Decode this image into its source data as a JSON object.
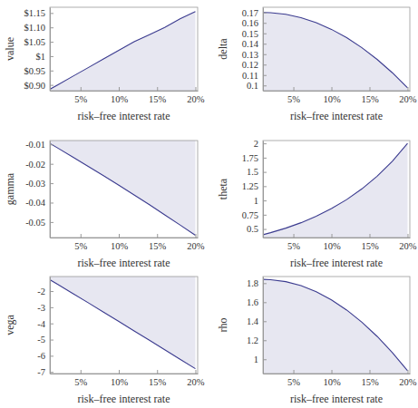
{
  "chart_data": [
    {
      "type": "area",
      "x_label": "risk–free interest rate",
      "y_label": "value",
      "color": "#3b3b8f",
      "x": [
        1,
        2,
        4,
        6,
        8,
        10,
        12,
        14,
        16,
        18,
        20
      ],
      "values": [
        0.885,
        0.9,
        0.93,
        0.96,
        0.99,
        1.02,
        1.05,
        1.075,
        1.1,
        1.13,
        1.155
      ],
      "xlim": [
        1,
        20.3
      ],
      "ylim": [
        0.88,
        1.17
      ],
      "xticks": [
        {
          "value": 5,
          "label": "5%"
        },
        {
          "value": 10,
          "label": "10%"
        },
        {
          "value": 15,
          "label": "15%"
        },
        {
          "value": 20,
          "label": "20%"
        }
      ],
      "yticks": [
        {
          "value": 0.9,
          "label": "$0.90"
        },
        {
          "value": 0.95,
          "label": "$0.95"
        },
        {
          "value": 1,
          "label": "$1"
        },
        {
          "value": 1.05,
          "label": "$1.05"
        },
        {
          "value": 1.1,
          "label": "$1.10"
        },
        {
          "value": 1.15,
          "label": "$1.15"
        }
      ]
    },
    {
      "type": "area",
      "x_label": "risk–free interest rate",
      "y_label": "delta",
      "color": "#3b3b8f",
      "x": [
        1,
        2,
        4,
        6,
        8,
        10,
        12,
        14,
        16,
        18,
        20
      ],
      "values": [
        0.17,
        0.1698,
        0.1682,
        0.165,
        0.1602,
        0.1538,
        0.1458,
        0.1362,
        0.125,
        0.1122,
        0.0978
      ],
      "xlim": [
        1,
        20.3
      ],
      "ylim": [
        0.095,
        0.175
      ],
      "xticks": [
        {
          "value": 5,
          "label": "5%"
        },
        {
          "value": 10,
          "label": "10%"
        },
        {
          "value": 15,
          "label": "15%"
        },
        {
          "value": 20,
          "label": "20%"
        }
      ],
      "yticks": [
        0.1,
        0.11,
        0.12,
        0.13,
        0.14,
        0.15,
        0.16,
        0.17
      ]
    },
    {
      "type": "area",
      "x_label": "risk–free interest rate",
      "y_label": "gamma",
      "color": "#3b3b8f",
      "x": [
        1,
        2,
        4,
        6,
        8,
        10,
        12,
        14,
        16,
        18,
        20
      ],
      "values": [
        -0.0095,
        -0.0118,
        -0.0165,
        -0.0213,
        -0.0261,
        -0.031,
        -0.036,
        -0.0411,
        -0.0463,
        -0.0515,
        -0.0568
      ],
      "xlim": [
        1,
        20.3
      ],
      "ylim": [
        -0.058,
        -0.008
      ],
      "xticks": [
        {
          "value": 5,
          "label": "5%"
        },
        {
          "value": 10,
          "label": "10%"
        },
        {
          "value": 15,
          "label": "15%"
        },
        {
          "value": 20,
          "label": "20%"
        }
      ],
      "yticks": [
        -0.05,
        -0.04,
        -0.03,
        -0.02,
        -0.01
      ]
    },
    {
      "type": "area",
      "x_label": "risk–free interest rate",
      "y_label": "theta",
      "color": "#3b3b8f",
      "x": [
        1,
        2,
        4,
        6,
        8,
        10,
        12,
        14,
        16,
        18,
        20
      ],
      "values": [
        0.4,
        0.435,
        0.515,
        0.61,
        0.724,
        0.857,
        1.015,
        1.203,
        1.425,
        1.688,
        2.0
      ],
      "xlim": [
        1,
        20.3
      ],
      "ylim": [
        0.35,
        2.05
      ],
      "xticks": [
        {
          "value": 5,
          "label": "5%"
        },
        {
          "value": 10,
          "label": "10%"
        },
        {
          "value": 15,
          "label": "15%"
        },
        {
          "value": 20,
          "label": "20%"
        }
      ],
      "yticks": [
        0.5,
        0.75,
        1,
        1.25,
        1.5,
        1.75,
        2
      ]
    },
    {
      "type": "area",
      "x_label": "risk–free interest rate",
      "y_label": "vega",
      "color": "#3b3b8f",
      "x": [
        1,
        2,
        4,
        6,
        8,
        10,
        12,
        14,
        16,
        18,
        20
      ],
      "values": [
        -1.3,
        -1.58,
        -2.15,
        -2.72,
        -3.3,
        -3.88,
        -4.46,
        -5.04,
        -5.63,
        -6.22,
        -6.8
      ],
      "xlim": [
        1,
        20.3
      ],
      "ylim": [
        -7.1,
        -1.1
      ],
      "xticks": [
        {
          "value": 5,
          "label": "5%"
        },
        {
          "value": 10,
          "label": "10%"
        },
        {
          "value": 15,
          "label": "15%"
        },
        {
          "value": 20,
          "label": "20%"
        }
      ],
      "yticks": [
        -7,
        -6,
        -5,
        -4,
        -3,
        -2
      ]
    },
    {
      "type": "area",
      "x_label": "risk–free interest rate",
      "y_label": "rho",
      "color": "#3b3b8f",
      "x": [
        1,
        2,
        4,
        6,
        8,
        10,
        12,
        14,
        16,
        18,
        20
      ],
      "values": [
        1.84,
        1.837,
        1.816,
        1.774,
        1.71,
        1.625,
        1.518,
        1.39,
        1.241,
        1.071,
        0.88
      ],
      "xlim": [
        1,
        20.3
      ],
      "ylim": [
        0.85,
        1.87
      ],
      "xticks": [
        {
          "value": 5,
          "label": "5%"
        },
        {
          "value": 10,
          "label": "10%"
        },
        {
          "value": 15,
          "label": "15%"
        },
        {
          "value": 20,
          "label": "20%"
        }
      ],
      "yticks": [
        1,
        1.2,
        1.4,
        1.6,
        1.8
      ]
    }
  ]
}
